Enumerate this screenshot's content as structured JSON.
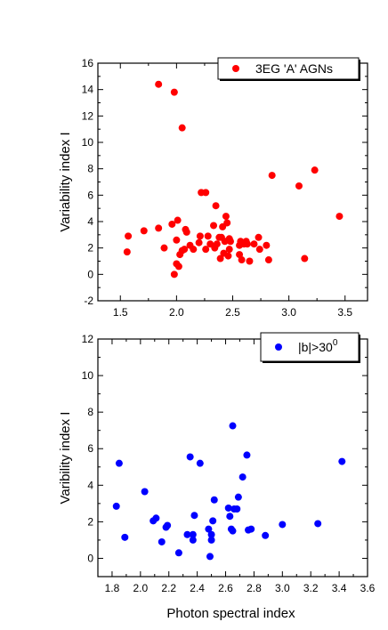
{
  "chart_data": [
    {
      "type": "scatter",
      "xlabel": "",
      "ylabel": "Variability index I",
      "xlim": [
        1.3,
        3.7
      ],
      "ylim": [
        -2,
        16
      ],
      "xticks": [
        1.5,
        2.0,
        2.5,
        3.0,
        3.5
      ],
      "xtick_labels": [
        "1.5",
        "2.0",
        "2.5",
        "3.0",
        "3.5"
      ],
      "yticks": [
        -2,
        0,
        2,
        4,
        6,
        8,
        10,
        12,
        14,
        16
      ],
      "ytick_labels": [
        "-2",
        "0",
        "2",
        "4",
        "6",
        "8",
        "10",
        "12",
        "14",
        "16"
      ],
      "legend_position": "top-right",
      "series": [
        {
          "name": "3EG 'A' AGNs",
          "color": "#ff0000",
          "points": [
            [
              1.56,
              1.7
            ],
            [
              1.57,
              2.9
            ],
            [
              1.71,
              3.3
            ],
            [
              1.84,
              14.4
            ],
            [
              1.84,
              3.5
            ],
            [
              1.89,
              2.0
            ],
            [
              1.96,
              3.8
            ],
            [
              1.98,
              13.8
            ],
            [
              1.98,
              0.0
            ],
            [
              2.0,
              2.6
            ],
            [
              2.0,
              0.8
            ],
            [
              2.01,
              4.1
            ],
            [
              2.02,
              0.6
            ],
            [
              2.03,
              1.5
            ],
            [
              2.05,
              11.1
            ],
            [
              2.05,
              1.8
            ],
            [
              2.07,
              1.9
            ],
            [
              2.08,
              3.4
            ],
            [
              2.09,
              3.2
            ],
            [
              2.12,
              2.2
            ],
            [
              2.15,
              1.9
            ],
            [
              2.2,
              2.4
            ],
            [
              2.21,
              2.9
            ],
            [
              2.22,
              6.2
            ],
            [
              2.26,
              6.2
            ],
            [
              2.26,
              1.9
            ],
            [
              2.28,
              2.9
            ],
            [
              2.3,
              2.3
            ],
            [
              2.33,
              3.7
            ],
            [
              2.35,
              5.2
            ],
            [
              2.36,
              2.3
            ],
            [
              2.38,
              2.8
            ],
            [
              2.39,
              1.2
            ],
            [
              2.4,
              2.8
            ],
            [
              2.41,
              3.6
            ],
            [
              2.42,
              1.6
            ],
            [
              2.43,
              2.5
            ],
            [
              2.44,
              4.4
            ],
            [
              2.45,
              3.9
            ],
            [
              2.46,
              1.4
            ],
            [
              2.47,
              2.7
            ],
            [
              2.47,
              1.9
            ],
            [
              2.48,
              2.5
            ],
            [
              2.56,
              2.2
            ],
            [
              2.57,
              2.5
            ],
            [
              2.58,
              1.1
            ],
            [
              2.6,
              2.3
            ],
            [
              2.62,
              2.5
            ],
            [
              2.63,
              2.3
            ],
            [
              2.65,
              1.0
            ],
            [
              2.69,
              2.3
            ],
            [
              2.73,
              2.8
            ],
            [
              2.74,
              1.9
            ],
            [
              2.8,
              2.2
            ],
            [
              2.82,
              1.1
            ],
            [
              2.85,
              7.5
            ],
            [
              3.09,
              6.7
            ],
            [
              3.14,
              1.2
            ],
            [
              3.23,
              7.9
            ],
            [
              3.45,
              4.4
            ],
            [
              2.56,
              1.5
            ],
            [
              2.34,
              2.0
            ]
          ]
        }
      ]
    },
    {
      "type": "scatter",
      "xlabel": "Photon spectral index",
      "ylabel": "Varibility index I",
      "xlim": [
        1.7,
        3.6
      ],
      "ylim": [
        -1,
        12
      ],
      "xticks": [
        1.8,
        2.0,
        2.2,
        2.4,
        2.6,
        2.8,
        3.0,
        3.2,
        3.4,
        3.6
      ],
      "xtick_labels": [
        "1.8",
        "2.0",
        "2.2",
        "2.4",
        "2.6",
        "2.8",
        "3.0",
        "3.2",
        "3.4",
        "3.6"
      ],
      "yticks": [
        0,
        2,
        4,
        6,
        8,
        10,
        12
      ],
      "ytick_labels": [
        "0",
        "2",
        "4",
        "6",
        "8",
        "10",
        "12"
      ],
      "legend_position": "top-right",
      "series": [
        {
          "name": "|b|>30",
          "name_superscript": "0",
          "color": "#0000ff",
          "points": [
            [
              1.83,
              2.85
            ],
            [
              1.85,
              5.2
            ],
            [
              1.89,
              1.15
            ],
            [
              2.03,
              3.65
            ],
            [
              2.09,
              2.05
            ],
            [
              2.11,
              2.2
            ],
            [
              2.15,
              0.9
            ],
            [
              2.18,
              1.7
            ],
            [
              2.19,
              1.8
            ],
            [
              2.27,
              0.3
            ],
            [
              2.33,
              1.3
            ],
            [
              2.35,
              5.55
            ],
            [
              2.37,
              1.0
            ],
            [
              2.37,
              1.3
            ],
            [
              2.38,
              2.35
            ],
            [
              2.42,
              5.2
            ],
            [
              2.48,
              1.6
            ],
            [
              2.49,
              0.1
            ],
            [
              2.5,
              1.3
            ],
            [
              2.5,
              1.0
            ],
            [
              2.51,
              2.05
            ],
            [
              2.52,
              3.2
            ],
            [
              2.62,
              2.75
            ],
            [
              2.63,
              2.3
            ],
            [
              2.64,
              1.6
            ],
            [
              2.65,
              7.25
            ],
            [
              2.65,
              1.5
            ],
            [
              2.66,
              2.7
            ],
            [
              2.68,
              2.7
            ],
            [
              2.69,
              3.35
            ],
            [
              2.72,
              4.45
            ],
            [
              2.75,
              5.65
            ],
            [
              2.76,
              1.55
            ],
            [
              2.78,
              1.6
            ],
            [
              2.88,
              1.25
            ],
            [
              3.0,
              1.85
            ],
            [
              3.25,
              1.9
            ],
            [
              3.42,
              5.3
            ]
          ]
        }
      ]
    }
  ]
}
